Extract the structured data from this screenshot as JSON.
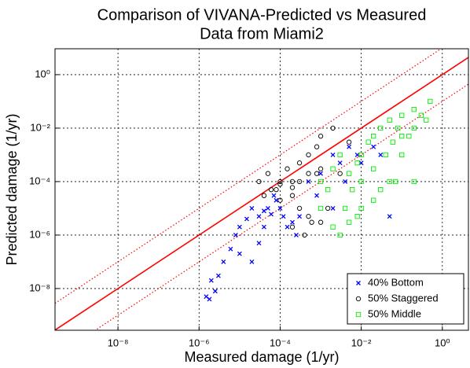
{
  "chart_data": {
    "type": "scatter",
    "title": [
      "Comparison of VIVANA-Predicted vs Measured",
      "Data from Miami2"
    ],
    "x_label": "Measured damage (1/yr)",
    "y_label": "Predicted damage (1/yr)",
    "log_x": true,
    "log_y": true,
    "grid": true,
    "legend": "lower right",
    "xlim": [
      2.8e-10,
      4.4
    ],
    "ylim": [
      2.75e-10,
      9.3
    ],
    "xticks": [
      {
        "value": 1e-08,
        "label": "10⁻⁸"
      },
      {
        "value": 1e-06,
        "label": "10⁻⁶"
      },
      {
        "value": 0.0001,
        "label": "10⁻⁴"
      },
      {
        "value": 0.01,
        "label": "10⁻²"
      },
      {
        "value": 1,
        "label": "10⁰"
      }
    ],
    "yticks": [
      {
        "value": 1e-08,
        "label": "10⁻⁸"
      },
      {
        "value": 1e-06,
        "label": "10⁻⁶"
      },
      {
        "value": 0.0001,
        "label": "10⁻⁴"
      },
      {
        "value": 0.01,
        "label": "10⁻²"
      },
      {
        "value": 1,
        "label": "10⁰"
      }
    ],
    "reference_lines": [
      {
        "factor": 1,
        "style": "solid",
        "color": "#ff0000"
      },
      {
        "factor": 10,
        "style": "dotted",
        "color": "#ff0000"
      },
      {
        "factor": 0.1,
        "style": "dotted",
        "color": "#ff0000"
      }
    ],
    "series": [
      {
        "name": "40% Bottom",
        "color": "#0000ff",
        "marker": "x",
        "x": [
          1.5e-06,
          2e-06,
          2.5e-06,
          3e-06,
          1.8e-06,
          4e-06,
          6e-06,
          8e-06,
          1e-05,
          1.5e-05,
          2e-05,
          3e-05,
          4e-05,
          5e-05,
          6e-05,
          8e-05,
          0.0001,
          0.00012,
          0.0002,
          0.0003,
          0.0005,
          1e-05,
          2e-05,
          3e-05,
          4e-05,
          7e-05,
          0.00015,
          0.00025,
          0.0008,
          0.001,
          0.002,
          0.003,
          0.005,
          0.008,
          0.01,
          0.02,
          0.03,
          0.05,
          0.002,
          0.004
        ],
        "values": [
          5e-09,
          2e-08,
          8e-09,
          3e-08,
          4e-09,
          1e-07,
          3e-07,
          1e-06,
          2e-06,
          4e-06,
          1e-05,
          5e-06,
          8e-06,
          1e-05,
          6e-06,
          2e-05,
          1e-05,
          5e-06,
          3e-06,
          5e-06,
          0.0001,
          2e-07,
          1e-07,
          5e-07,
          2e-06,
          3e-05,
          2e-06,
          1e-06,
          3e-05,
          0.0002,
          0.001,
          0.0005,
          0.002,
          0.001,
          0.0005,
          0.002,
          0.001,
          5e-06,
          1e-05,
          0.0001
        ]
      },
      {
        "name": "50% Staggered",
        "color": "#000000",
        "marker": "circle",
        "x": [
          3e-05,
          5e-05,
          8e-05,
          0.0001,
          0.00015,
          0.0002,
          0.0003,
          0.0005,
          0.0008,
          0.001,
          0.002,
          4e-05,
          6e-05,
          0.0001,
          0.0002,
          0.0003,
          0.0005,
          0.001,
          0.0015,
          0.003,
          0.005,
          0.0002,
          0.0004,
          0.0006,
          0.0008,
          0.0001,
          0.0002,
          0.0003,
          0.0005,
          0.001
        ],
        "values": [
          0.0001,
          0.0002,
          5e-05,
          0.0001,
          0.0003,
          0.0001,
          0.0005,
          0.001,
          0.002,
          0.005,
          0.01,
          3e-05,
          5e-05,
          2e-05,
          3e-05,
          1e-05,
          5e-06,
          3e-06,
          1e-05,
          0.0002,
          0.003,
          2e-06,
          1e-06,
          3e-06,
          0.0002,
          8e-05,
          6e-05,
          0.0001,
          0.0002,
          0.0003
        ]
      },
      {
        "name": "50% Middle",
        "color": "#00ee00",
        "marker": "square",
        "x": [
          0.001,
          0.002,
          0.003,
          0.005,
          0.008,
          0.01,
          0.015,
          0.02,
          0.03,
          0.05,
          0.08,
          0.1,
          0.2,
          0.3,
          0.5,
          0.001,
          0.002,
          0.004,
          0.006,
          0.01,
          0.02,
          0.04,
          0.06,
          0.1,
          0.2,
          0.4,
          0.003,
          0.005,
          0.01,
          0.03,
          0.05,
          0.1,
          0.2,
          0.0015,
          0.008,
          0.02,
          0.07,
          0.15
        ],
        "values": [
          0.0001,
          0.0003,
          0.001,
          0.0002,
          0.0005,
          0.001,
          0.003,
          0.005,
          0.01,
          0.02,
          0.01,
          0.03,
          0.05,
          0.03,
          0.1,
          1e-05,
          2e-06,
          1e-05,
          5e-05,
          0.0001,
          0.0003,
          0.001,
          0.003,
          0.005,
          0.01,
          0.02,
          1e-06,
          3e-06,
          1e-05,
          5e-05,
          0.0001,
          0.001,
          0.0001,
          5e-05,
          5e-06,
          2e-05,
          0.0001,
          0.005
        ]
      }
    ]
  }
}
